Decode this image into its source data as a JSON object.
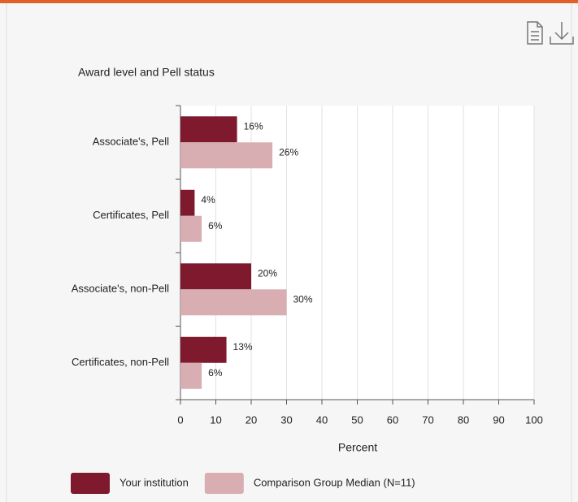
{
  "chart_data": {
    "type": "bar",
    "orientation": "horizontal",
    "title": "Award level and Pell status",
    "x_label": "Percent",
    "categories": [
      "Associate's, Pell",
      "Certificates, Pell",
      "Associate's, non-Pell",
      "Certificates, non-Pell"
    ],
    "series": [
      {
        "name": "Your institution",
        "color": "#7f1a2e",
        "values": [
          16,
          4,
          20,
          13
        ],
        "value_labels": [
          "16%",
          "4%",
          "20%",
          "13%"
        ]
      },
      {
        "name": "Comparison Group Median (N=11)",
        "color": "#d9aeb3",
        "values": [
          26,
          6,
          30,
          6
        ],
        "value_labels": [
          "26%",
          "6%",
          "30%",
          "6%"
        ]
      }
    ],
    "xlim": [
      0,
      100
    ],
    "xticks": [
      0,
      10,
      20,
      30,
      40,
      50,
      60,
      70,
      80,
      90,
      100
    ],
    "grid": true
  }
}
